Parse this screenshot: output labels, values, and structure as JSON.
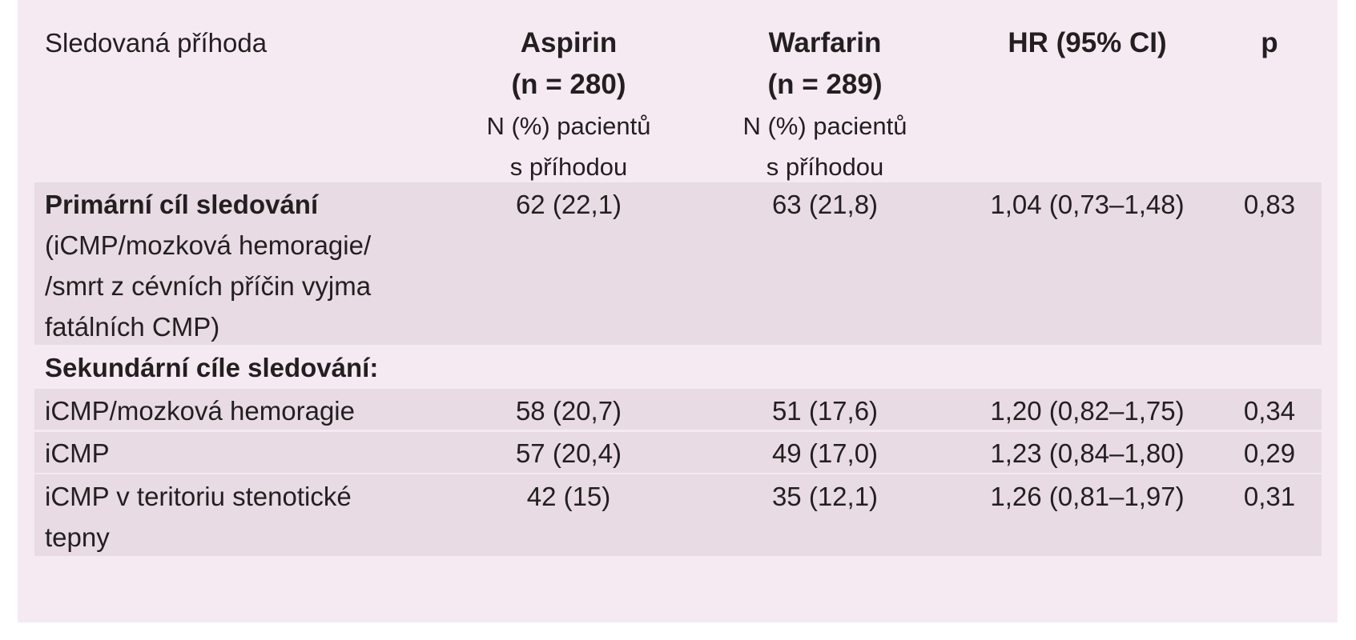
{
  "header": {
    "event": "Sledovaná příhoda",
    "aspirin_name": "Aspirin",
    "aspirin_n": "(n = 280)",
    "warfarin_name": "Warfarin",
    "warfarin_n": "(n = 289)",
    "sub_line1": "N (%) pacientů",
    "sub_line2": "s příhodou",
    "hr": "HR (95% CI)",
    "p": "p"
  },
  "primary": {
    "title": "Primární cíl sledování",
    "desc_line1": "(iCMP/mozková hemoragie/",
    "desc_line2": "/smrt z cévních příčin vyjma",
    "desc_line3": "fatálních CMP)",
    "aspirin": "62 (22,1)",
    "warfarin": "63 (21,8)",
    "hr": "1,04 (0,73–1,48)",
    "p": "0,83"
  },
  "secondary_title": "Sekundární cíle sledování:",
  "rows": [
    {
      "label_line1": "iCMP/mozková hemoragie",
      "label_line2": "",
      "aspirin": "58 (20,7)",
      "warfarin": "51 (17,6)",
      "hr": "1,20 (0,82–1,75)",
      "p": "0,34"
    },
    {
      "label_line1": "iCMP",
      "label_line2": "",
      "aspirin": "57 (20,4)",
      "warfarin": "49 (17,0)",
      "hr": "1,23 (0,84–1,80)",
      "p": "0,29"
    },
    {
      "label_line1": "iCMP v teritoriu stenotické",
      "label_line2": "tepny",
      "aspirin": "42 (15)",
      "warfarin": "35 (12,1)",
      "hr": "1,26 (0,81–1,97)",
      "p": "0,31"
    }
  ]
}
